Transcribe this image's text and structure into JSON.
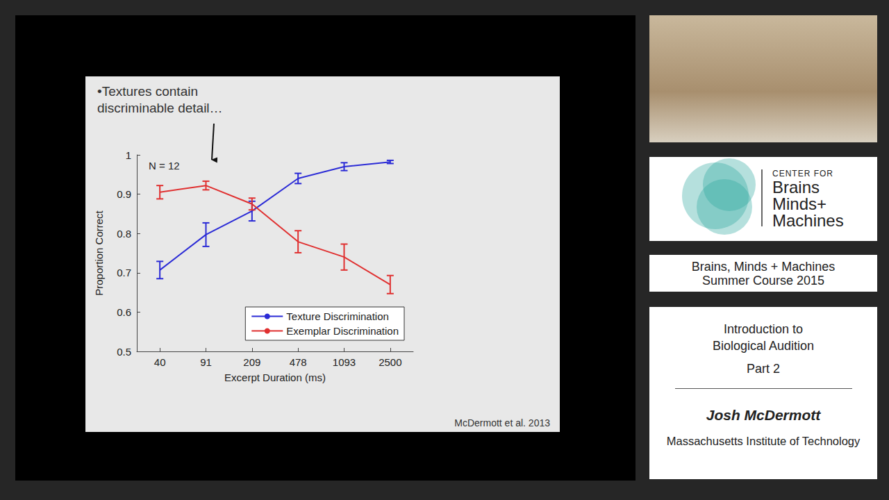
{
  "chart_data": {
    "type": "line",
    "x_label": "Excerpt Duration (ms)",
    "y_label": "Proportion Correct",
    "categories": [
      "40",
      "91",
      "209",
      "478",
      "1093",
      "2500"
    ],
    "ylim": [
      0.5,
      1
    ],
    "yticks": [
      0.5,
      0.6,
      0.7,
      0.8,
      0.9,
      1
    ],
    "grid": false,
    "legend": "lower right",
    "annotations": [
      "•Textures contain discriminable detail…",
      "N = 12"
    ],
    "series": [
      {
        "name": "Texture Discrimination",
        "color": "#2b2bd6",
        "values": [
          0.707,
          0.797,
          0.857,
          0.94,
          0.97,
          0.982
        ],
        "error": [
          0.022,
          0.03,
          0.025,
          0.013,
          0.01,
          0.004
        ]
      },
      {
        "name": "Exemplar Discrimination",
        "color": "#e03030",
        "values": [
          0.905,
          0.922,
          0.875,
          0.779,
          0.74,
          0.67
        ],
        "error": [
          0.017,
          0.011,
          0.015,
          0.028,
          0.033,
          0.023
        ]
      }
    ]
  },
  "citation": "McDermott et al. 2013",
  "sidebar": {
    "logo": [
      "CENTER FOR",
      "Brains",
      "Minds+",
      "Machines"
    ],
    "course": [
      "Brains, Minds + Machines",
      "Summer Course 2015"
    ],
    "lecture": [
      "Introduction to",
      "Biological Audition",
      "Part 2"
    ],
    "speaker": "Josh McDermott",
    "affiliation": "Massachusetts Institute of Technology"
  }
}
